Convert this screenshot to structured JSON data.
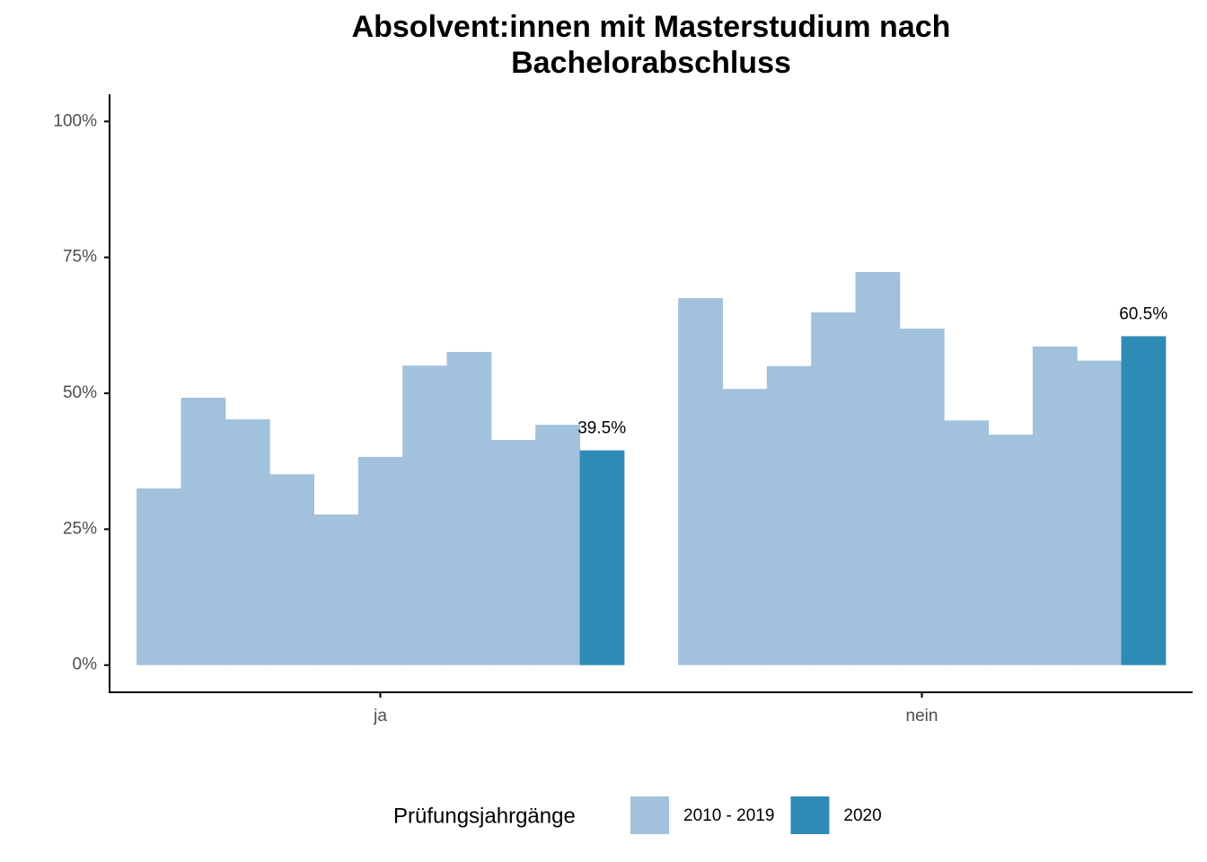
{
  "chart_data": {
    "type": "bar",
    "title": "Absolvent:innen mit Masterstudium nach Bachelorabschluss",
    "categories": [
      "ja",
      "nein"
    ],
    "series": [
      {
        "name": "2010 - 2019",
        "color": "#a1c1dd",
        "values": [
          [
            32.5,
            49.2,
            45.2,
            35.1,
            27.7,
            38.3,
            55.1,
            57.6,
            41.4,
            44.2
          ],
          [
            67.5,
            50.8,
            55.0,
            64.9,
            72.3,
            61.9,
            45.0,
            42.4,
            58.6,
            56.0
          ]
        ]
      },
      {
        "name": "2020",
        "color": "#2e8bb6",
        "values": [
          39.5,
          60.5
        ],
        "value_labels": [
          "39.5%",
          "60.5%"
        ]
      }
    ],
    "legend_title": "Prüfungsjahrgänge",
    "ylim": [
      -5,
      105
    ],
    "yticks": [
      {
        "value": 0,
        "label": "0%"
      },
      {
        "value": 25,
        "label": "25%"
      },
      {
        "value": 50,
        "label": "50%"
      },
      {
        "value": 75,
        "label": "75%"
      },
      {
        "value": 100,
        "label": "100%"
      }
    ],
    "grid": false
  }
}
